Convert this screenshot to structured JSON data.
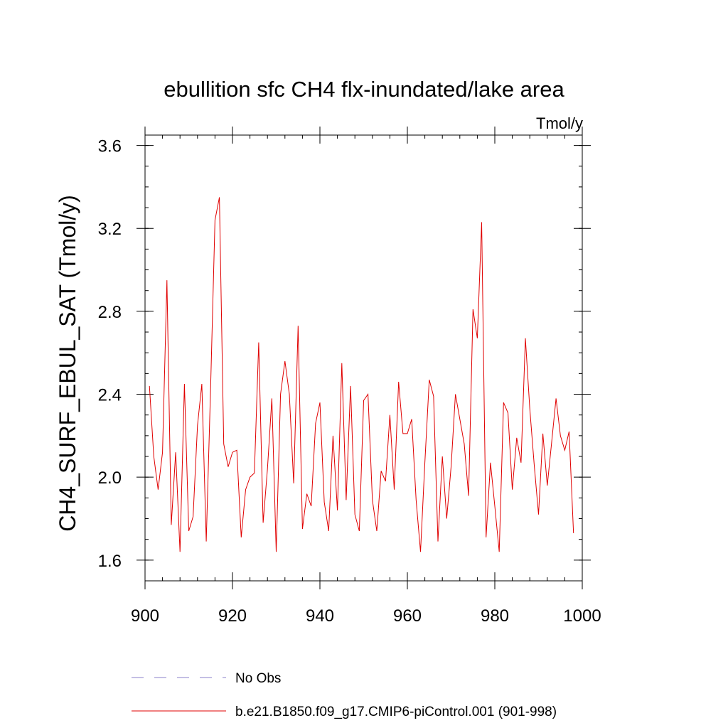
{
  "chart_data": {
    "type": "line",
    "title": "ebullition sfc CH4 flx-inundated/lake area",
    "units": "Tmol/y",
    "xlabel": "",
    "ylabel": "CH4_SURF_EBUL_SAT  (Tmol/y)",
    "xlim": [
      900,
      1000
    ],
    "ylim": [
      1.5,
      3.65
    ],
    "xticks": [
      900,
      920,
      940,
      960,
      980,
      1000
    ],
    "xtick_labels": [
      "900",
      "920",
      "940",
      "960",
      "980",
      "1000"
    ],
    "yticks": [
      1.6,
      2.0,
      2.4,
      2.8,
      3.2,
      3.6
    ],
    "ytick_labels": [
      "1.6",
      "2.0",
      "2.4",
      "2.8",
      "3.2",
      "3.6"
    ],
    "x_minor_step": 4,
    "y_minor_step": 0.1,
    "grid": false,
    "series": [
      {
        "name": "No Obs",
        "color": "#8a7fc8",
        "dash": "dashed",
        "x": [],
        "y": []
      },
      {
        "name": "b.e21.B1850.f09_g17.CMIP6-piControl.001 (901-998)",
        "color": "#e00000",
        "dash": "solid",
        "x": [
          901,
          902,
          903,
          904,
          905,
          906,
          907,
          908,
          909,
          910,
          911,
          912,
          913,
          914,
          915,
          916,
          917,
          918,
          919,
          920,
          921,
          922,
          923,
          924,
          925,
          926,
          927,
          928,
          929,
          930,
          931,
          932,
          933,
          934,
          935,
          936,
          937,
          938,
          939,
          940,
          941,
          942,
          943,
          944,
          945,
          946,
          947,
          948,
          949,
          950,
          951,
          952,
          953,
          954,
          955,
          956,
          957,
          958,
          959,
          960,
          961,
          962,
          963,
          964,
          965,
          966,
          967,
          968,
          969,
          970,
          971,
          972,
          973,
          974,
          975,
          976,
          977,
          978,
          979,
          980,
          981,
          982,
          983,
          984,
          985,
          986,
          987,
          988,
          989,
          990,
          991,
          992,
          993,
          994,
          995,
          996,
          997,
          998
        ],
        "y": [
          2.44,
          2.1,
          1.94,
          2.12,
          2.95,
          1.77,
          2.12,
          1.64,
          2.45,
          1.74,
          1.81,
          2.25,
          2.45,
          1.69,
          2.44,
          3.24,
          3.35,
          2.16,
          2.05,
          2.12,
          2.13,
          1.71,
          1.94,
          2.0,
          2.02,
          2.65,
          1.78,
          2.04,
          2.38,
          1.64,
          2.4,
          2.56,
          2.4,
          1.97,
          2.73,
          1.75,
          1.92,
          1.86,
          2.26,
          2.36,
          1.88,
          1.74,
          2.2,
          1.84,
          2.55,
          1.89,
          2.44,
          1.82,
          1.74,
          2.37,
          2.4,
          1.89,
          1.74,
          2.03,
          1.98,
          2.3,
          1.94,
          2.46,
          2.21,
          2.21,
          2.28,
          1.89,
          1.64,
          2.07,
          2.47,
          2.39,
          1.69,
          2.1,
          1.8,
          2.05,
          2.4,
          2.28,
          2.16,
          1.91,
          2.81,
          2.67,
          3.23,
          1.71,
          2.07,
          1.86,
          1.64,
          2.36,
          2.31,
          1.94,
          2.19,
          2.07,
          2.67,
          2.33,
          2.06,
          1.82,
          2.21,
          1.96,
          2.17,
          2.38,
          2.2,
          2.13,
          2.22,
          1.73
        ]
      }
    ]
  }
}
